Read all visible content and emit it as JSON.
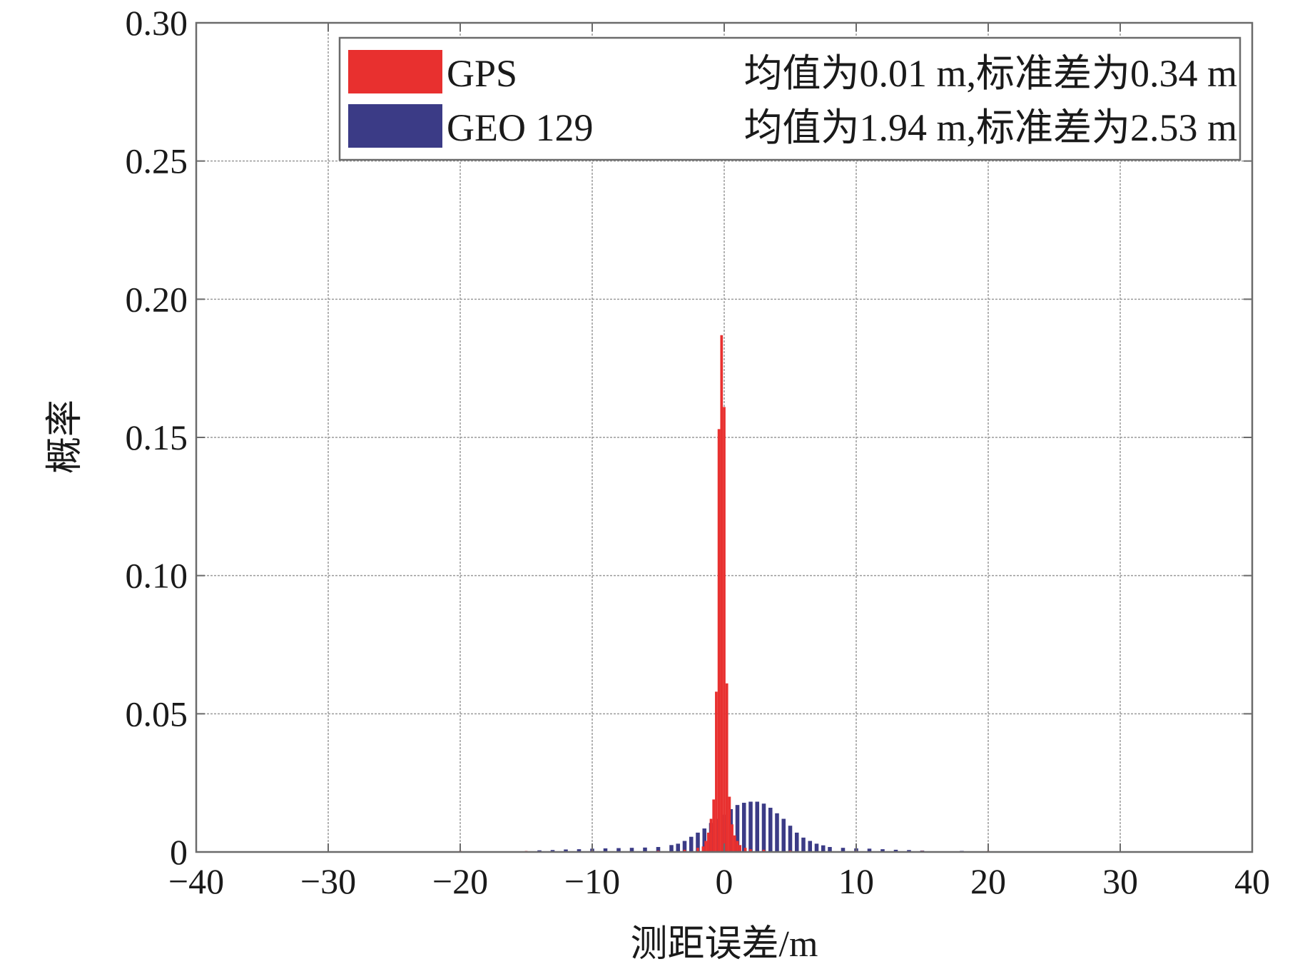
{
  "chart_data": {
    "type": "bar",
    "xlabel": "测距误差/m",
    "ylabel": "概率",
    "xlim": [
      -40,
      40
    ],
    "ylim": [
      0,
      0.3
    ],
    "grid": true,
    "legend_position": "top-right",
    "x_ticks": [
      -40,
      -30,
      -20,
      -10,
      0,
      10,
      20,
      30,
      40
    ],
    "x_tick_labels": [
      "−40",
      "−30",
      "−20",
      "−10",
      "0",
      "10",
      "20",
      "30",
      "40"
    ],
    "y_ticks": [
      0,
      0.05,
      0.1,
      0.15,
      0.2,
      0.25,
      0.3
    ],
    "y_tick_labels": [
      "0",
      "0.05",
      "0.10",
      "0.15",
      "0.20",
      "0.25",
      "0.30"
    ],
    "series": [
      {
        "name": "GPS",
        "legend_text": "均值为0.01 m,标准差为0.34 m",
        "color": "#e8302f",
        "bin_width": 0.2,
        "x": [
          -20.0,
          -15.0,
          -10.0,
          -5.0,
          -3.0,
          -2.0,
          -1.6,
          -1.4,
          -1.2,
          -1.0,
          -0.8,
          -0.6,
          -0.4,
          -0.2,
          0.0,
          0.2,
          0.4,
          0.6,
          0.8,
          1.0,
          1.2,
          1.6,
          2.0,
          3.0,
          5.0,
          10.0,
          15.0,
          20.0
        ],
        "values": [
          0.0003,
          0.0003,
          0.0003,
          0.0005,
          0.0008,
          0.0015,
          0.002,
          0.004,
          0.007,
          0.012,
          0.019,
          0.058,
          0.153,
          0.187,
          0.161,
          0.061,
          0.02,
          0.01,
          0.006,
          0.004,
          0.0025,
          0.0015,
          0.001,
          0.0008,
          0.0005,
          0.0003,
          0.0003,
          0.0003
        ]
      },
      {
        "name": "GEO 129",
        "legend_text": "均值为1.94 m,标准差为2.53 m",
        "color": "#3b3b86",
        "bin_width": 0.3,
        "x": [
          -14.0,
          -13.0,
          -12.0,
          -11.0,
          -10.0,
          -9.0,
          -8.0,
          -7.0,
          -6.0,
          -5.0,
          -4.0,
          -3.5,
          -3.0,
          -2.5,
          -2.0,
          -1.5,
          -1.0,
          -0.5,
          0.0,
          0.5,
          1.0,
          1.5,
          2.0,
          2.5,
          3.0,
          3.5,
          4.0,
          4.5,
          5.0,
          5.5,
          6.0,
          6.5,
          7.0,
          7.5,
          8.0,
          9.0,
          10.0,
          11.0,
          12.0,
          13.0,
          14.0,
          15.0,
          18.0
        ],
        "values": [
          0.0006,
          0.0007,
          0.0009,
          0.001,
          0.0012,
          0.0013,
          0.0014,
          0.0015,
          0.0016,
          0.0018,
          0.0025,
          0.003,
          0.004,
          0.0055,
          0.007,
          0.0085,
          0.0105,
          0.012,
          0.0135,
          0.0155,
          0.017,
          0.0178,
          0.0182,
          0.0182,
          0.0175,
          0.016,
          0.014,
          0.012,
          0.0095,
          0.007,
          0.0052,
          0.004,
          0.003,
          0.0024,
          0.0018,
          0.0015,
          0.0013,
          0.0012,
          0.001,
          0.0008,
          0.0007,
          0.0005,
          0.0004
        ]
      }
    ]
  }
}
